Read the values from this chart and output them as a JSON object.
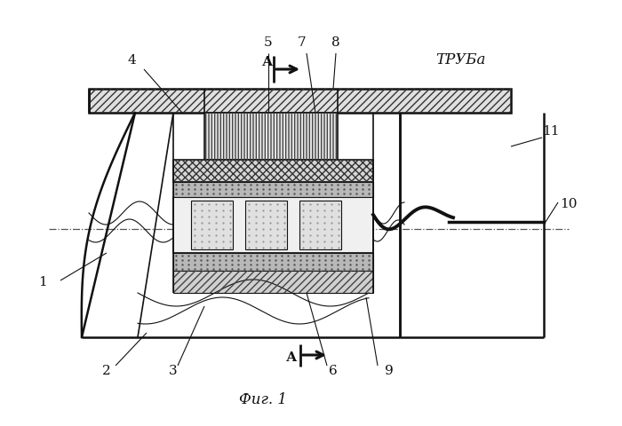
{
  "background_color": "#ffffff",
  "title": "Фиг. 1",
  "label_truba": "ТРУБа",
  "figsize": [
    7.0,
    4.8
  ],
  "dpi": 100
}
